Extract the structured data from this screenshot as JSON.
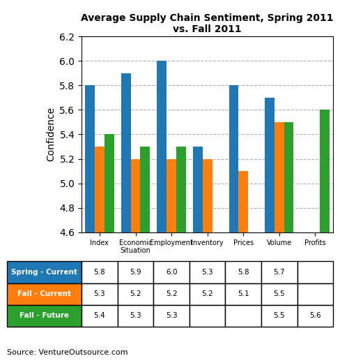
{
  "chart_data": {
    "type": "bar",
    "title": "Average Supply Chain Sentiment, Spring 2011 vs. Fall 2011",
    "y_label": "Confidence",
    "annotations": [
      "Source: VentureOutsource.com"
    ],
    "categories": [
      "Index",
      "Economic\nSituation",
      "Employment",
      "Inventory",
      "Prices",
      "Volume",
      "Profits"
    ],
    "series": [
      {
        "name": "Spring - Current",
        "values": [
          5.8,
          5.9,
          6.0,
          5.3,
          5.8,
          5.7,
          null
        ]
      },
      {
        "name": "Fall - Current",
        "values": [
          5.3,
          5.2,
          5.2,
          5.2,
          5.1,
          5.5,
          null
        ]
      },
      {
        "name": "Fall - Future",
        "values": [
          5.4,
          5.3,
          5.3,
          null,
          null,
          5.5,
          5.6
        ]
      }
    ],
    "ylim": [
      4.6,
      6.2
    ],
    "yticks": [
      4.6,
      4.8,
      5.0,
      5.2,
      5.4,
      5.6,
      5.8,
      6.0,
      6.2
    ],
    "grid": true
  }
}
